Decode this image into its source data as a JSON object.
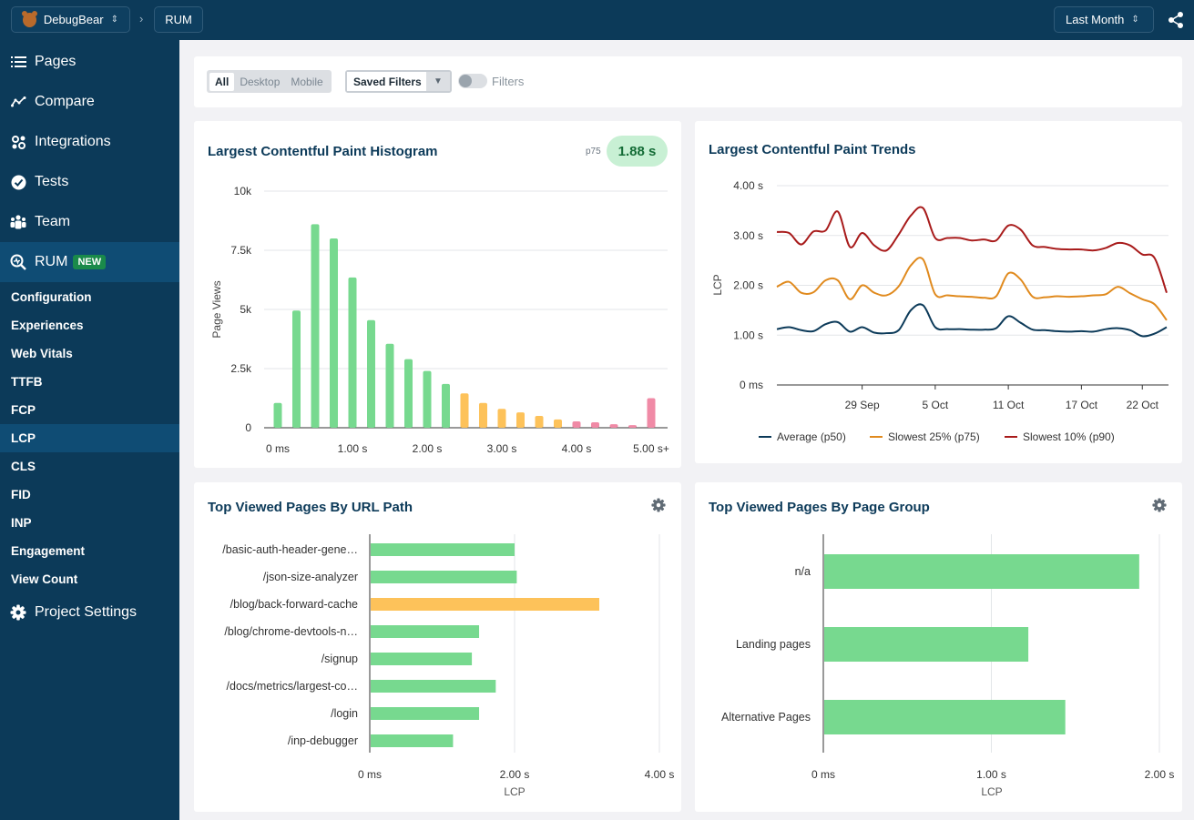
{
  "topbar": {
    "project": "DebugBear",
    "section": "RUM",
    "date_range": "Last Month"
  },
  "sidebar": {
    "main_items": [
      {
        "label": "Pages",
        "icon": "list-icon"
      },
      {
        "label": "Compare",
        "icon": "trend-icon"
      },
      {
        "label": "Integrations",
        "icon": "integrations-icon"
      },
      {
        "label": "Tests",
        "icon": "check-circle-icon"
      },
      {
        "label": "Team",
        "icon": "team-icon"
      },
      {
        "label": "RUM",
        "icon": "rum-search-icon",
        "badge": "NEW"
      }
    ],
    "sub_items": [
      "Configuration",
      "Experiences",
      "Web Vitals",
      "TTFB",
      "FCP",
      "LCP",
      "CLS",
      "FID",
      "INP",
      "Engagement",
      "View Count"
    ],
    "active_sub": "LCP",
    "settings_label": "Project Settings"
  },
  "filters": {
    "devices": [
      "All",
      "Desktop",
      "Mobile"
    ],
    "selected_device": "All",
    "saved_filters": "Saved Filters",
    "filters_label": "Filters"
  },
  "histogram": {
    "title": "Largest Contentful Paint Histogram",
    "p75_label": "p75",
    "p75_value": "1.88 s"
  },
  "trends": {
    "title": "Largest Contentful Paint Trends"
  },
  "top_urls": {
    "title": "Top Viewed Pages By URL Path"
  },
  "top_groups": {
    "title": "Top Viewed Pages By Page Group"
  },
  "colors": {
    "good": "#77d98f",
    "needs_improvement": "#fdc25a",
    "poor": "#f08aa6",
    "p50": "#0c3a59",
    "p75": "#e08a1e",
    "p90": "#a81b1b"
  },
  "chart_data": [
    {
      "type": "bar",
      "name": "lcp-histogram",
      "title": "Largest Contentful Paint Histogram",
      "ylabel": "Page Views",
      "yticks": [
        "0",
        "2.5k",
        "5k",
        "7.5k",
        "10k"
      ],
      "ylim": [
        0,
        10000
      ],
      "xticks": [
        "0 ms",
        "1.00 s",
        "2.00 s",
        "3.00 s",
        "4.00 s",
        "5.00 s+"
      ],
      "bin_width_s": 0.25,
      "bins_start_s": [
        0,
        0.25,
        0.5,
        0.75,
        1.0,
        1.25,
        1.5,
        1.75,
        2.0,
        2.25,
        2.5,
        2.75,
        3.0,
        3.25,
        3.5,
        3.75,
        4.0,
        4.25,
        4.5,
        4.75,
        5.0
      ],
      "values": [
        1050,
        4950,
        8600,
        8000,
        6350,
        4550,
        3550,
        2900,
        2400,
        1850,
        1450,
        1050,
        800,
        650,
        500,
        350,
        270,
        230,
        150,
        110,
        1250
      ],
      "categories_rating": [
        "good",
        "good",
        "good",
        "good",
        "good",
        "good",
        "good",
        "good",
        "good",
        "good",
        "needs_improvement",
        "needs_improvement",
        "needs_improvement",
        "needs_improvement",
        "needs_improvement",
        "needs_improvement",
        "poor",
        "poor",
        "poor",
        "poor",
        "poor"
      ],
      "grid": true
    },
    {
      "type": "line",
      "name": "lcp-trends",
      "title": "Largest Contentful Paint Trends",
      "ylabel": "LCP",
      "yticks": [
        "0 ms",
        "1.00 s",
        "2.00 s",
        "3.00 s",
        "4.00 s"
      ],
      "ylim": [
        0,
        4
      ],
      "xticks": [
        {
          "label": "29 Sep",
          "day": 7
        },
        {
          "label": "5 Oct",
          "day": 13
        },
        {
          "label": "11 Oct",
          "day": 19
        },
        {
          "label": "17 Oct",
          "day": 25
        },
        {
          "label": "22 Oct",
          "day": 30
        }
      ],
      "x_days": [
        0,
        1,
        2,
        3,
        4,
        5,
        6,
        7,
        8,
        9,
        10,
        11,
        12,
        13,
        14,
        15,
        16,
        17,
        18,
        19,
        20,
        21,
        22,
        23,
        24,
        25,
        26,
        27,
        28,
        29,
        30,
        31,
        32
      ],
      "series": [
        {
          "name": "Average (p50)",
          "color_key": "p50",
          "values": [
            1.12,
            1.16,
            1.1,
            1.08,
            1.22,
            1.26,
            1.07,
            1.16,
            1.05,
            1.04,
            1.1,
            1.5,
            1.6,
            1.16,
            1.12,
            1.12,
            1.11,
            1.11,
            1.14,
            1.38,
            1.25,
            1.11,
            1.1,
            1.08,
            1.07,
            1.08,
            1.07,
            1.12,
            1.14,
            1.1,
            0.98,
            1.03,
            1.16
          ]
        },
        {
          "name": "Slowest 25% (p75)",
          "color_key": "p75",
          "values": [
            1.97,
            2.07,
            1.85,
            1.86,
            2.1,
            2.1,
            1.72,
            2.0,
            1.85,
            1.8,
            1.98,
            2.4,
            2.52,
            1.82,
            1.8,
            1.78,
            1.77,
            1.75,
            1.78,
            2.24,
            2.12,
            1.77,
            1.76,
            1.78,
            1.77,
            1.78,
            1.8,
            1.82,
            1.97,
            1.84,
            1.72,
            1.62,
            1.3
          ]
        },
        {
          "name": "Slowest 10% (p90)",
          "color_key": "p90",
          "values": [
            3.07,
            3.05,
            2.82,
            3.08,
            3.1,
            3.48,
            2.77,
            3.05,
            2.8,
            2.7,
            3.02,
            3.4,
            3.55,
            2.95,
            2.95,
            2.95,
            2.9,
            2.92,
            2.9,
            3.2,
            3.12,
            2.8,
            2.77,
            2.73,
            2.72,
            2.72,
            2.7,
            2.75,
            2.85,
            2.8,
            2.62,
            2.55,
            1.85
          ]
        }
      ],
      "legend": "bottom",
      "grid": true
    },
    {
      "type": "bar",
      "name": "top-url-paths",
      "orientation": "horizontal",
      "title": "Top Viewed Pages By URL Path",
      "xlabel": "LCP",
      "xticks": [
        "0 ms",
        "2.00 s",
        "4.00 s"
      ],
      "xlim_s": [
        0,
        4
      ],
      "categories": [
        "/basic-auth-header-gene…",
        "/json-size-analyzer",
        "/blog/back-forward-cache",
        "/blog/chrome-devtools-n…",
        "/signup",
        "/docs/metrics/largest-co…",
        "/login",
        "/inp-debugger"
      ],
      "values_s": [
        2.0,
        2.03,
        3.17,
        1.51,
        1.41,
        1.74,
        1.51,
        1.15
      ],
      "ratings": [
        "good",
        "good",
        "needs_improvement",
        "good",
        "good",
        "good",
        "good",
        "good"
      ]
    },
    {
      "type": "bar",
      "name": "top-page-groups",
      "orientation": "horizontal",
      "title": "Top Viewed Pages By Page Group",
      "xlabel": "LCP",
      "xticks": [
        "0 ms",
        "1.00 s",
        "2.00 s"
      ],
      "xlim_s": [
        0,
        2
      ],
      "categories": [
        "n/a",
        "Landing pages",
        "Alternative Pages"
      ],
      "values_s": [
        1.88,
        1.22,
        1.44
      ],
      "ratings": [
        "good",
        "good",
        "good"
      ]
    }
  ]
}
